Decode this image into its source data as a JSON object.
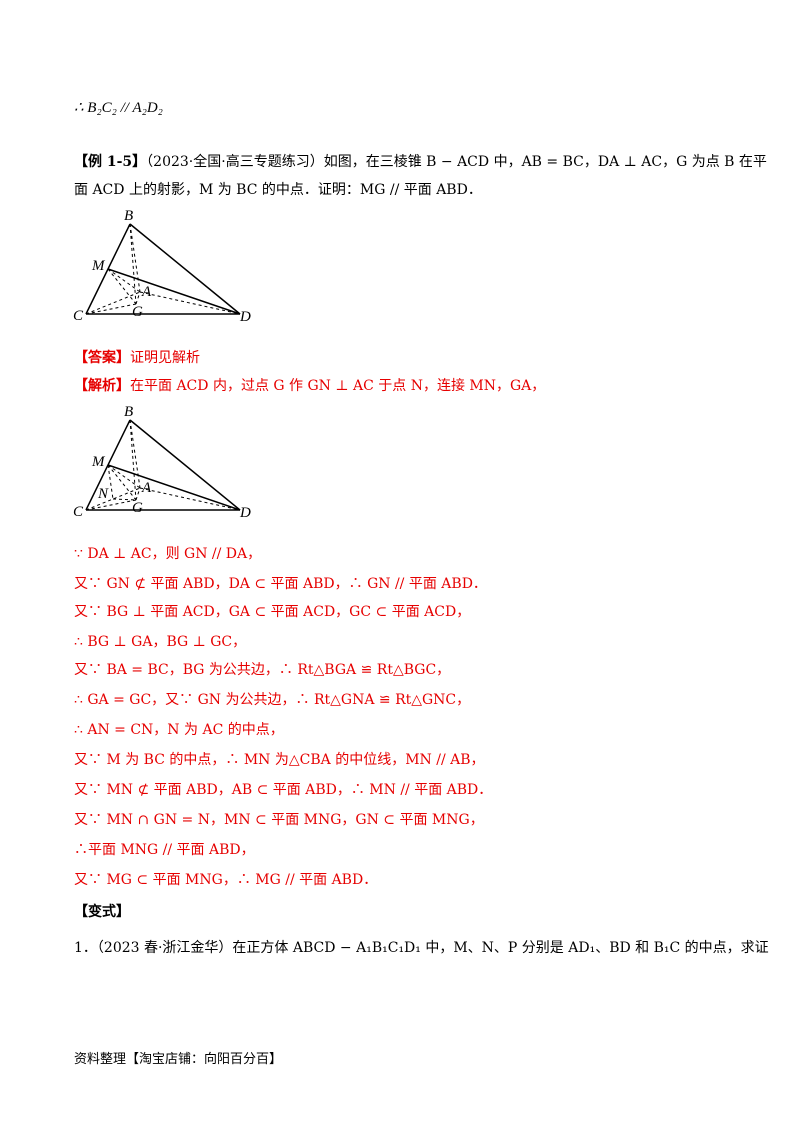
{
  "top_line": "∴ B₂C₂ // A₂D₂",
  "example": {
    "tag": "【例 1-5】",
    "source": "（2023·全国·高三专题练习）",
    "line1": "如图，在三棱锥 B − ACD 中，AB = BC，DA ⊥ AC，G 为点 B 在平",
    "line2": "面 ACD 上的射影，M 为 BC 的中点．证明：MG // 平面 ABD．"
  },
  "figure_labels": {
    "fig1": [
      "B",
      "M",
      "A",
      "G",
      "C",
      "D"
    ],
    "fig2": [
      "B",
      "M",
      "N",
      "A",
      "G",
      "C",
      "D"
    ]
  },
  "answer": {
    "tag": "【答案】",
    "text": "证明见解析"
  },
  "analysis": {
    "tag": "【解析】",
    "text": "在平面 ACD 内，过点 G 作 GN ⊥ AC 于点 N，连接 MN，GA，"
  },
  "proof_lines": [
    "∵ DA ⊥ AC，则 GN // DA，",
    "又∵ GN ⊄ 平面 ABD，DA ⊂ 平面 ABD，∴ GN // 平面 ABD．",
    "又∵ BG ⊥ 平面 ACD，GA ⊂ 平面 ACD，GC ⊂ 平面 ACD，",
    "∴ BG ⊥ GA，BG ⊥ GC，",
    "又∵ BA = BC，BG 为公共边，∴ Rt△BGA ≌ Rt△BGC，",
    "∴ GA = GC，又∵ GN 为公共边，∴ Rt△GNA ≌ Rt△GNC，",
    "∴ AN = CN，N 为 AC 的中点，",
    "又∵ M 为 BC 的中点，∴ MN 为△CBA 的中位线，MN // AB，",
    "又∵ MN ⊄ 平面 ABD，AB ⊂ 平面 ABD，∴ MN // 平面 ABD．",
    "又∵ MN ∩ GN = N，MN ⊂ 平面 MNG，GN ⊂ 平面 MNG，",
    "∴平面 MNG // 平面 ABD，",
    "又∵ MG ⊂ 平面 MNG，∴ MG // 平面 ABD．"
  ],
  "variant": {
    "tag": "【变式】"
  },
  "question1": "1．（2023 春·浙江金华）在正方体 ABCD − A₁B₁C₁D₁ 中，M、N、P 分别是 AD₁、BD 和 B₁C 的中点，求证",
  "footer": "资料整理【淘宝店铺：向阳百分百】",
  "colors": {
    "red": "#e60000",
    "text": "#000000"
  }
}
